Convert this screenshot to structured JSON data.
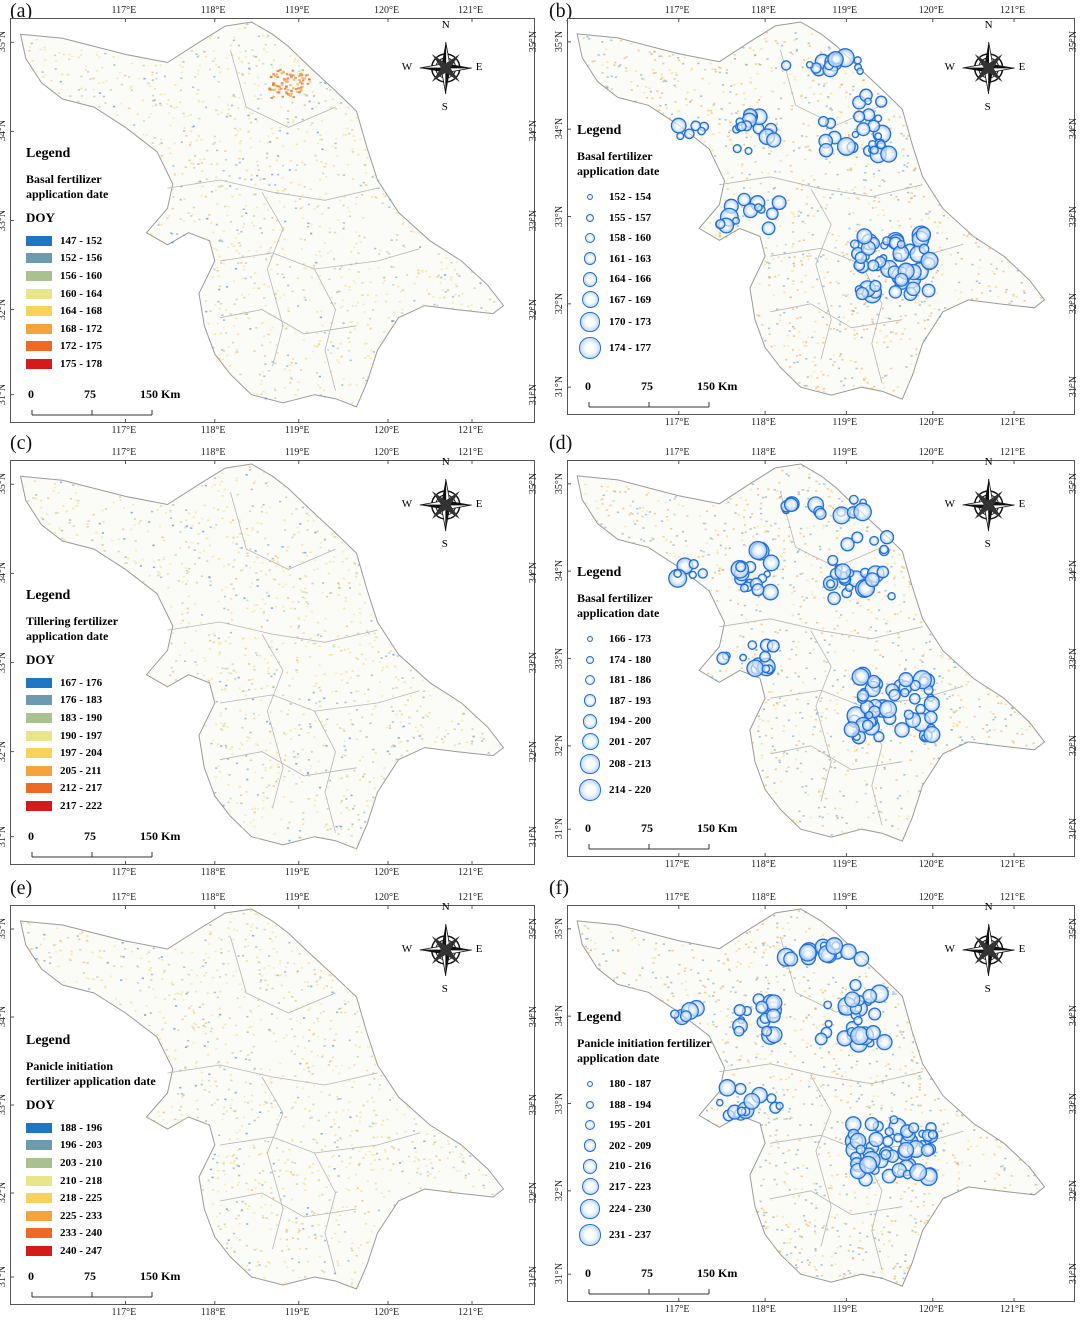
{
  "longitude_ticks": [
    "117°E",
    "118°E",
    "119°E",
    "120°E",
    "121°E"
  ],
  "latitude_ticks": [
    "35°N",
    "34°N",
    "33°N",
    "32°N",
    "31°N"
  ],
  "compass": {
    "n": "N",
    "s": "S",
    "e": "E",
    "w": "W"
  },
  "scale": {
    "zero": "0",
    "mid": "75",
    "end": "150 Km"
  },
  "colors": {
    "circle": "#1f6fdc",
    "border": "#9a9a9a",
    "frame": "#555555"
  },
  "panels": [
    {
      "label": "(a)",
      "type": "raster",
      "legend_title": "Legend",
      "legend_subtitle": [
        "Basal fertilizer",
        "application date"
      ],
      "doy_label": "DOY",
      "classes": [
        {
          "range": "147 - 152",
          "color": "#1f77c4"
        },
        {
          "range": "152 - 156",
          "color": "#6c9bb0"
        },
        {
          "range": "156 - 160",
          "color": "#a9c18e"
        },
        {
          "range": "160 - 164",
          "color": "#e8e58a"
        },
        {
          "range": "164 - 168",
          "color": "#f8d25a"
        },
        {
          "range": "168 - 172",
          "color": "#f5a33d"
        },
        {
          "range": "172 - 175",
          "color": "#ee6a24"
        },
        {
          "range": "175 - 178",
          "color": "#d41a1a"
        }
      ]
    },
    {
      "label": "(b)",
      "type": "points",
      "legend_title": "Legend",
      "legend_subtitle": [
        "Basal fertilizer",
        "application date"
      ],
      "classes": [
        "152 - 154",
        "155 - 157",
        "158 - 160",
        "161 - 163",
        "164 - 166",
        "167 - 169",
        "170 - 173",
        "174 - 177"
      ]
    },
    {
      "label": "(c)",
      "type": "raster",
      "legend_title": "Legend",
      "legend_subtitle": [
        "Tillering fertilizer",
        "application date"
      ],
      "doy_label": "DOY",
      "classes": [
        {
          "range": "167 - 176",
          "color": "#1f77c4"
        },
        {
          "range": "176 - 183",
          "color": "#6c9bb0"
        },
        {
          "range": "183 - 190",
          "color": "#a9c18e"
        },
        {
          "range": "190 - 197",
          "color": "#e8e58a"
        },
        {
          "range": "197 - 204",
          "color": "#f8d25a"
        },
        {
          "range": "205 - 211",
          "color": "#f5a33d"
        },
        {
          "range": "212 - 217",
          "color": "#ee6a24"
        },
        {
          "range": "217 - 222",
          "color": "#d41a1a"
        }
      ]
    },
    {
      "label": "(d)",
      "type": "points",
      "legend_title": "Legend",
      "legend_subtitle": [
        "Basal fertilizer",
        "application date"
      ],
      "classes": [
        "166 - 173",
        "174 - 180",
        "181 - 186",
        "187 - 193",
        "194 - 200",
        "201 - 207",
        "208 - 213",
        "214 - 220"
      ]
    },
    {
      "label": "(e)",
      "type": "raster",
      "legend_title": "Legend",
      "legend_subtitle": [
        "Panicle initiation",
        "fertilizer application date"
      ],
      "doy_label": "DOY",
      "classes": [
        {
          "range": "188 - 196",
          "color": "#1f77c4"
        },
        {
          "range": "196 - 203",
          "color": "#6c9bb0"
        },
        {
          "range": "203 - 210",
          "color": "#a9c18e"
        },
        {
          "range": "210 - 218",
          "color": "#e8e58a"
        },
        {
          "range": "218 - 225",
          "color": "#f8d25a"
        },
        {
          "range": "225 - 233",
          "color": "#f5a33d"
        },
        {
          "range": "233 - 240",
          "color": "#ee6a24"
        },
        {
          "range": "240 - 247",
          "color": "#d41a1a"
        }
      ]
    },
    {
      "label": "(f)",
      "type": "points",
      "legend_title": "Legend",
      "legend_subtitle": [
        "Panicle initiation fertilizer",
        "application date"
      ],
      "classes": [
        "180 - 187",
        "188 - 194",
        "195 - 201",
        "202 - 209",
        "210 - 216",
        "217 - 223",
        "224 - 230",
        "231 - 237"
      ]
    }
  ]
}
